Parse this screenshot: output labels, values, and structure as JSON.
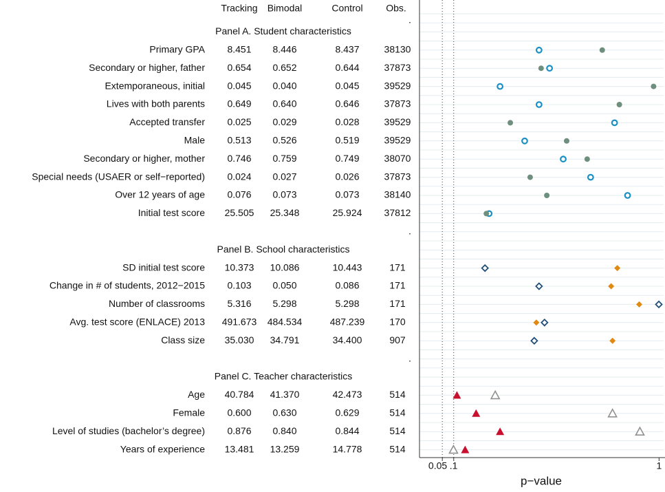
{
  "table": {
    "columns": [
      "Tracking",
      "Bimodal",
      "Control",
      "Obs."
    ],
    "separators": [
      ".",
      ".",
      "."
    ],
    "panels": [
      {
        "title": "Panel A. Student characteristics",
        "rows": [
          [
            "Primary GPA",
            "8.451",
            "8.446",
            "8.437",
            "38130"
          ],
          [
            "Secondary or higher, father",
            "0.654",
            "0.652",
            "0.644",
            "37873"
          ],
          [
            "Extemporaneous, initial",
            "0.045",
            "0.040",
            "0.045",
            "39529"
          ],
          [
            "Lives with both parents",
            "0.649",
            "0.640",
            "0.646",
            "37873"
          ],
          [
            "Accepted transfer",
            "0.025",
            "0.029",
            "0.028",
            "39529"
          ],
          [
            "Male",
            "0.513",
            "0.526",
            "0.519",
            "39529"
          ],
          [
            "Secondary or higher, mother",
            "0.746",
            "0.759",
            "0.749",
            "38070"
          ],
          [
            "Special needs (USAER or self−reported)",
            "0.024",
            "0.027",
            "0.026",
            "37873"
          ],
          [
            "Over 12 years of age",
            "0.076",
            "0.073",
            "0.073",
            "38140"
          ],
          [
            "Initial test score",
            "25.505",
            "25.348",
            "25.924",
            "37812"
          ]
        ]
      },
      {
        "title": "Panel B. School characteristics",
        "rows": [
          [
            "SD initial test score",
            "10.373",
            "10.086",
            "10.443",
            "171"
          ],
          [
            "Change in # of students, 2012−2015",
            "0.103",
            "0.050",
            "0.086",
            "171"
          ],
          [
            "Number of classrooms",
            "5.316",
            "5.298",
            "5.298",
            "171"
          ],
          [
            "Avg. test score (ENLACE) 2013",
            "491.673",
            "484.534",
            "487.239",
            "170"
          ],
          [
            "Class size",
            "35.030",
            "34.791",
            "34.400",
            "907"
          ]
        ]
      },
      {
        "title": "Panel C. Teacher characteristics",
        "rows": [
          [
            "Age",
            "40.784",
            "41.370",
            "42.473",
            "514"
          ],
          [
            "Female",
            "0.600",
            "0.630",
            "0.629",
            "514"
          ],
          [
            "Level of studies (bachelor’s degree)",
            "0.876",
            "0.840",
            "0.844",
            "514"
          ],
          [
            "Years of experience",
            "13.481",
            "13.259",
            "14.778",
            "514"
          ]
        ]
      }
    ]
  },
  "chart_data": {
    "type": "scatter",
    "xlabel": "p−value",
    "xlim": [
      -0.05,
      1.02
    ],
    "xticks": [
      0.05,
      {
        "value": 0.1,
        "label": ".1"
      },
      1
    ],
    "panels": [
      {
        "series": [
          {
            "marker": "circle-open",
            "color": "#1a8fc4",
            "values": [
              0.474,
              0.52,
              0.303,
              0.474,
              0.805,
              0.411,
              0.58,
              0.7,
              0.862,
              0.255
            ]
          },
          {
            "marker": "circle",
            "color": "#6e8f7e",
            "values": [
              0.751,
              0.483,
              0.976,
              0.826,
              0.348,
              0.595,
              0.685,
              0.435,
              0.508,
              0.243
            ]
          }
        ]
      },
      {
        "series": [
          {
            "marker": "diamond-open",
            "color": "#1f4e79",
            "values": [
              0.237,
              0.474,
              0.999,
              0.498,
              0.453
            ]
          },
          {
            "marker": "diamond",
            "color": "#e08a13",
            "values": [
              0.817,
              0.79,
              0.913,
              0.462,
              0.796
            ]
          }
        ]
      },
      {
        "series": [
          {
            "marker": "triangle",
            "color": "#c8102e",
            "values": [
              0.114,
              0.198,
              0.303,
              0.15
            ]
          },
          {
            "marker": "triangle-open",
            "color": "#909090",
            "values": [
              0.282,
              0.796,
              0.916,
              0.099
            ]
          }
        ]
      }
    ]
  }
}
